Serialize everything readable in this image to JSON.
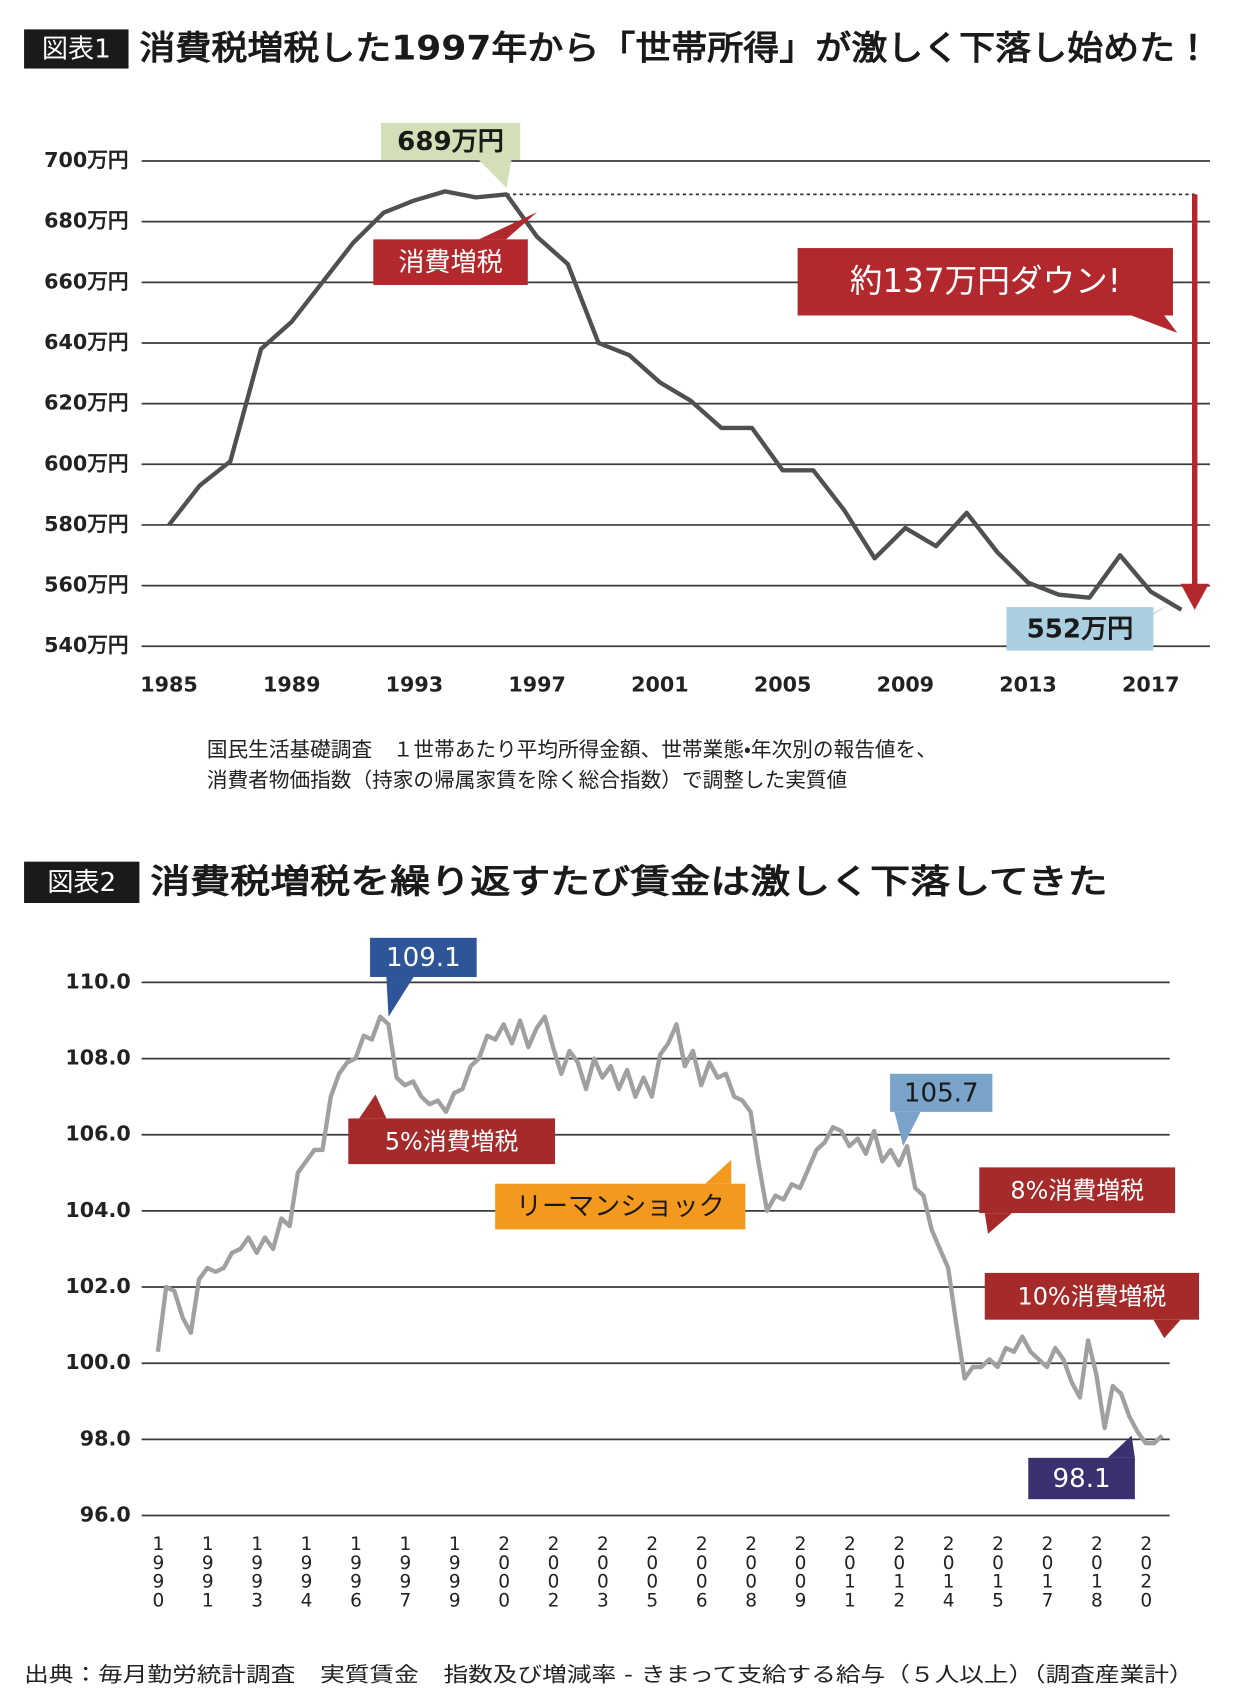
{
  "chart_data": [
    {
      "type": "line",
      "figure_label": "図表1",
      "title": "消費税増税した1997年から「世帯所得」が激しく下落し始めた！",
      "x": [
        1985,
        1986,
        1987,
        1988,
        1989,
        1990,
        1991,
        1992,
        1993,
        1994,
        1995,
        1996,
        1997,
        1998,
        1999,
        2000,
        2001,
        2002,
        2003,
        2004,
        2005,
        2006,
        2007,
        2008,
        2009,
        2010,
        2011,
        2012,
        2013,
        2014,
        2015,
        2016,
        2017,
        2018
      ],
      "values": [
        580,
        593,
        601,
        638,
        647,
        660,
        673,
        683,
        687,
        690,
        688,
        689,
        675,
        666,
        640,
        636,
        627,
        621,
        612,
        612,
        598,
        598,
        585,
        569,
        579,
        573,
        584,
        571,
        561,
        557,
        556,
        570,
        558,
        552
      ],
      "color": "#505050",
      "xlim": [
        1984,
        2019
      ],
      "xticks": [
        1985,
        1989,
        1993,
        1997,
        2001,
        2005,
        2009,
        2013,
        2017
      ],
      "ylim": [
        540,
        700
      ],
      "yticks": [
        {
          "value": 540,
          "label": "540万円"
        },
        {
          "value": 560,
          "label": "560万円"
        },
        {
          "value": 580,
          "label": "580万円"
        },
        {
          "value": 600,
          "label": "600万円"
        },
        {
          "value": 620,
          "label": "620万円"
        },
        {
          "value": 640,
          "label": "640万円"
        },
        {
          "value": 660,
          "label": "660万円"
        },
        {
          "value": 680,
          "label": "680万円"
        },
        {
          "value": 700,
          "label": "700万円"
        }
      ],
      "grid": true,
      "annotations": [
        {
          "label": "689万円",
          "value": 689,
          "x": 1996,
          "color": "#d3dfb6"
        },
        {
          "label": "消費増税",
          "x": 1997,
          "color": "#b3282d"
        },
        {
          "label": "約137万円ダウン!",
          "color": "#b3282d"
        },
        {
          "label": "552万円",
          "value": 552,
          "x": 2018,
          "color": "#a9cfe0"
        }
      ],
      "note": [
        "国民生活基礎調査　１世帯あたり平均所得金額、世帯業態・年次別の報告値を、",
        "消費者物価指数（持家の帰属家賃を除く総合指数）で調整した実質値"
      ]
    },
    {
      "type": "line",
      "figure_label": "図表2",
      "title": "消費税増税を繰り返すたび賃金は激しく下落してきた",
      "categories": [
        "1990",
        null,
        null,
        null,
        null,
        null,
        "1991",
        null,
        null,
        null,
        null,
        null,
        "1993",
        null,
        null,
        null,
        null,
        null,
        "1994",
        null,
        null,
        null,
        null,
        null,
        "1996",
        null,
        null,
        null,
        null,
        null,
        "1997",
        null,
        null,
        null,
        null,
        null,
        "1999",
        null,
        null,
        null,
        null,
        null,
        "2000",
        null,
        null,
        null,
        null,
        null,
        "2002",
        null,
        null,
        null,
        null,
        null,
        "2003",
        null,
        null,
        null,
        null,
        null,
        "2005",
        null,
        null,
        null,
        null,
        null,
        "2006",
        null,
        null,
        null,
        null,
        null,
        "2008",
        null,
        null,
        null,
        null,
        null,
        "2009",
        null,
        null,
        null,
        null,
        null,
        "2011",
        null,
        null,
        null,
        null,
        null,
        "2012",
        null,
        null,
        null,
        null,
        null,
        "2014",
        null,
        null,
        null,
        null,
        null,
        "2015",
        null,
        null,
        null,
        null,
        null,
        "2017",
        null,
        null,
        null,
        null,
        null,
        "2018",
        null,
        null,
        null,
        null,
        null,
        "2020",
        null,
        null
      ],
      "values": [
        100.3,
        102.0,
        101.9,
        101.2,
        100.8,
        102.2,
        102.5,
        102.4,
        102.5,
        102.9,
        103.0,
        103.3,
        102.9,
        103.3,
        103.0,
        103.8,
        103.6,
        105.0,
        105.3,
        105.6,
        105.6,
        107.0,
        107.6,
        107.9,
        108.0,
        108.6,
        108.5,
        109.1,
        108.9,
        107.5,
        107.3,
        107.4,
        107.0,
        106.8,
        106.9,
        106.6,
        107.1,
        107.2,
        107.8,
        108.0,
        108.6,
        108.5,
        108.9,
        108.4,
        109.0,
        108.3,
        108.8,
        109.1,
        108.3,
        107.6,
        108.2,
        107.9,
        107.2,
        108.0,
        107.5,
        107.8,
        107.2,
        107.7,
        107.0,
        107.5,
        107.0,
        108.1,
        108.4,
        108.9,
        107.8,
        108.2,
        107.3,
        107.9,
        107.5,
        107.6,
        107.0,
        106.9,
        106.6,
        105.2,
        104.0,
        104.4,
        104.3,
        104.7,
        104.6,
        105.1,
        105.6,
        105.8,
        106.2,
        106.1,
        105.7,
        105.9,
        105.5,
        106.1,
        105.3,
        105.6,
        105.2,
        105.7,
        104.6,
        104.4,
        103.5,
        103.0,
        102.5,
        101.0,
        99.6,
        99.9,
        99.9,
        100.1,
        99.9,
        100.4,
        100.3,
        100.7,
        100.3,
        100.1,
        99.9,
        100.4,
        100.1,
        99.5,
        99.1,
        100.6,
        99.7,
        98.3,
        99.4,
        99.2,
        98.6,
        98.2,
        97.9,
        97.9,
        98.1
      ],
      "color": "#a0a0a0",
      "ylim": [
        96,
        110
      ],
      "yticks": [
        {
          "value": 96,
          "label": "96.0"
        },
        {
          "value": 98,
          "label": "98.0"
        },
        {
          "value": 100,
          "label": "100.0"
        },
        {
          "value": 102,
          "label": "102.0"
        },
        {
          "value": 104,
          "label": "104.0"
        },
        {
          "value": 106,
          "label": "106.0"
        },
        {
          "value": 108,
          "label": "108.0"
        },
        {
          "value": 110,
          "label": "110.0"
        }
      ],
      "grid": true,
      "annotations": [
        {
          "label": "109.1",
          "value": 109.1,
          "color": "#2e5597"
        },
        {
          "label": "5%消費増税",
          "color": "#a52a2a"
        },
        {
          "label": "リーマンショック",
          "color": "#f39a1e"
        },
        {
          "label": "105.7",
          "value": 105.7,
          "color": "#7aa3c9"
        },
        {
          "label": "8%消費増税",
          "color": "#a52a2a"
        },
        {
          "label": "10%消費増税",
          "color": "#a52a2a"
        },
        {
          "label": "98.1",
          "value": 98.1,
          "color": "#3a3170"
        }
      ],
      "source": "出典：毎月勤労統計調査　実質賃金　指数及び増減率 - きまって支給する給与（５人以上）（調査産業計）"
    }
  ]
}
